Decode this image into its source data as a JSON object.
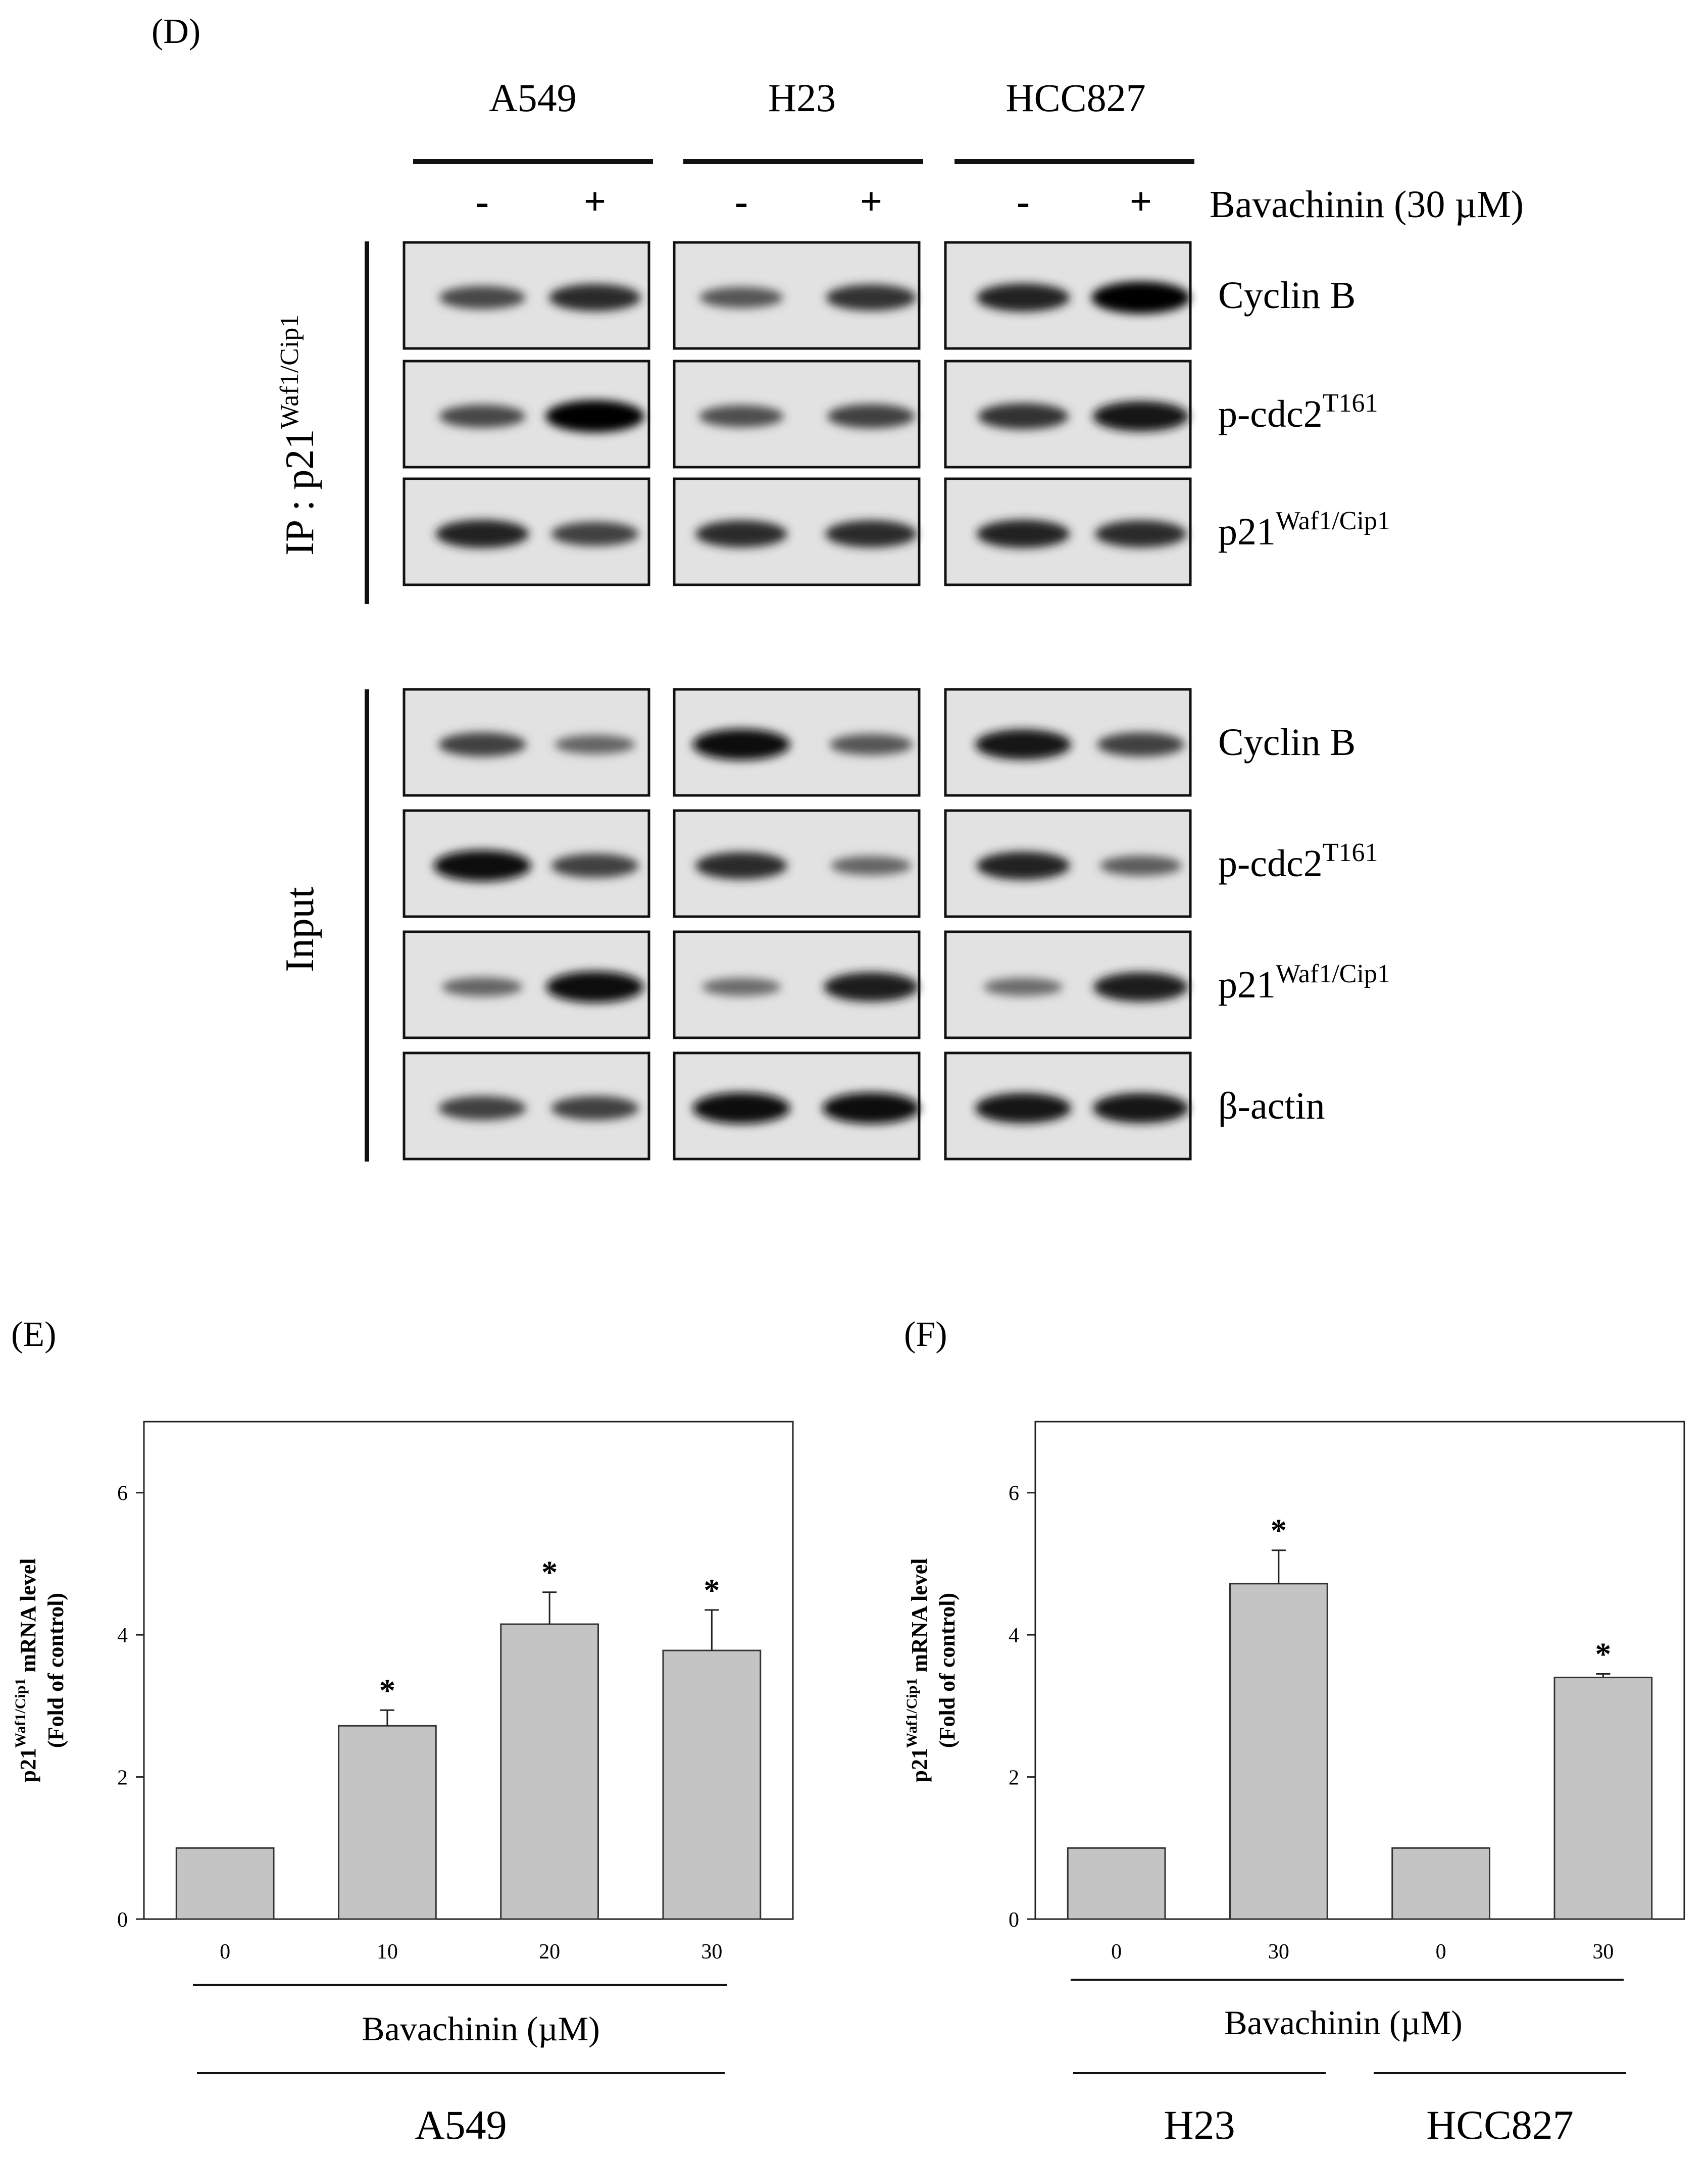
{
  "panel_d": {
    "letter": "(D)",
    "cell_lines": [
      "A549",
      "H23",
      "HCC827"
    ],
    "treatment": {
      "label": "Bavachinin (30 µM)",
      "signs": [
        "-",
        "+",
        "-",
        "+",
        "-",
        "+"
      ]
    },
    "ip_group": {
      "label": "IP : p21",
      "sup": "Waf1/Cip1"
    },
    "input_group": {
      "label": "Input"
    },
    "ip_rows": [
      {
        "name": "Cyclin B",
        "sup": "",
        "bands": [
          0.55,
          0.75,
          0.45,
          0.7,
          0.8,
          1.0
        ]
      },
      {
        "name": "p-cdc2",
        "sup": "T161",
        "bands": [
          0.55,
          1.0,
          0.5,
          0.6,
          0.7,
          0.9
        ]
      },
      {
        "name": "p21",
        "sup": "Waf1/Cip1",
        "bands": [
          0.8,
          0.6,
          0.75,
          0.75,
          0.8,
          0.75
        ]
      }
    ],
    "input_rows": [
      {
        "name": "Cyclin B",
        "sup": "",
        "bands": [
          0.6,
          0.35,
          0.95,
          0.45,
          0.9,
          0.6
        ]
      },
      {
        "name": "p-cdc2",
        "sup": "T161",
        "bands": [
          0.95,
          0.6,
          0.75,
          0.35,
          0.8,
          0.4
        ]
      },
      {
        "name": "p21",
        "sup": "Waf1/Cip1",
        "bands": [
          0.35,
          0.95,
          0.3,
          0.85,
          0.3,
          0.85
        ]
      },
      {
        "name": "β-actin",
        "sup": "",
        "bands": [
          0.6,
          0.6,
          0.95,
          0.95,
          0.9,
          0.9
        ]
      }
    ]
  },
  "chart_data": [
    {
      "type": "bar",
      "panel": "(E)",
      "ylabel_main": "p21",
      "ylabel_sup": "Waf1/Cip1",
      "ylabel_rest": " mRNA level",
      "ylabel_line2": "(Fold of control)",
      "ylim": [
        0,
        7
      ],
      "yticks": [
        0,
        2,
        4,
        6
      ],
      "categories": [
        "0",
        "10",
        "20",
        "30"
      ],
      "values": [
        1.0,
        2.72,
        4.15,
        3.78
      ],
      "errors": [
        0,
        0.22,
        0.45,
        0.57
      ],
      "significant": [
        "",
        "*",
        "*",
        "*"
      ],
      "xlabel": "Bavachinin (µM)",
      "groups": [
        "A549"
      ]
    },
    {
      "type": "bar",
      "panel": "(F)",
      "ylabel_main": "p21",
      "ylabel_sup": "Waf1/Cip1",
      "ylabel_rest": " mRNA level",
      "ylabel_line2": "(Fold of control)",
      "ylim": [
        0,
        7
      ],
      "yticks": [
        0,
        2,
        4,
        6
      ],
      "categories": [
        "0",
        "30",
        "0",
        "30"
      ],
      "values": [
        1.0,
        4.72,
        1.0,
        3.4
      ],
      "errors": [
        0,
        0.47,
        0,
        0.05
      ],
      "significant": [
        "",
        "*",
        "",
        "*"
      ],
      "xlabel": "Bavachinin (µM)",
      "groups": [
        "H23",
        "HCC827"
      ]
    }
  ]
}
